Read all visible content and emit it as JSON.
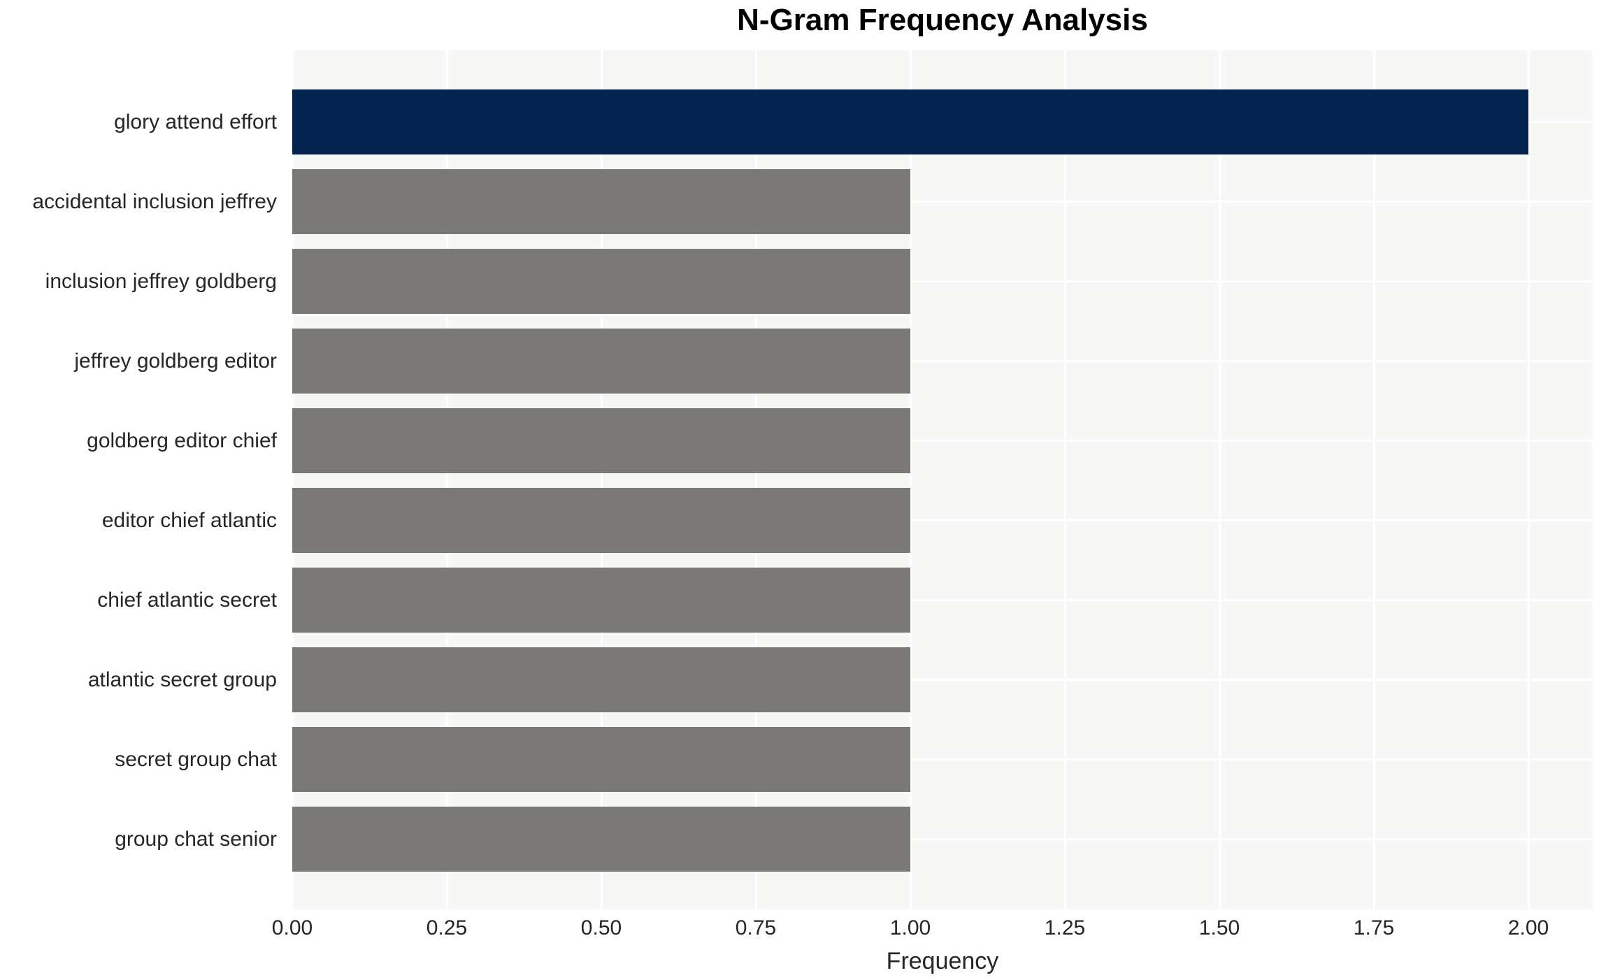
{
  "chart_data": {
    "type": "bar",
    "orientation": "horizontal",
    "title": "N-Gram Frequency Analysis",
    "xlabel": "Frequency",
    "ylabel": "",
    "categories": [
      "glory attend effort",
      "accidental inclusion jeffrey",
      "inclusion jeffrey goldberg",
      "jeffrey goldberg editor",
      "goldberg editor chief",
      "editor chief atlantic",
      "chief atlantic secret",
      "atlantic secret group",
      "secret group chat",
      "group chat senior"
    ],
    "values": [
      2.0,
      1.0,
      1.0,
      1.0,
      1.0,
      1.0,
      1.0,
      1.0,
      1.0,
      1.0
    ],
    "bar_colors": [
      "#02234d",
      "#7a7975",
      "#7a7975",
      "#7a7975",
      "#7a7975",
      "#7a7975",
      "#7a7975",
      "#7a7975",
      "#7a7975",
      "#7a7975"
    ],
    "xlim": [
      0,
      2.1
    ],
    "xticks": [
      0,
      0.25,
      0.5,
      0.75,
      1.0,
      1.25,
      1.5,
      1.75,
      2.0
    ],
    "xtick_labels": [
      "0.00",
      "0.25",
      "0.50",
      "0.75",
      "1.00",
      "1.25",
      "1.50",
      "1.75",
      "2.00"
    ],
    "grid": true,
    "legend": false,
    "colors": {
      "highlight_bar": "#02234d",
      "default_bar": "#7a7975",
      "plot_background": "#f7f7f6",
      "gridline": "#ffffff",
      "tick_text": "#262626",
      "title_text": "#000000"
    }
  }
}
